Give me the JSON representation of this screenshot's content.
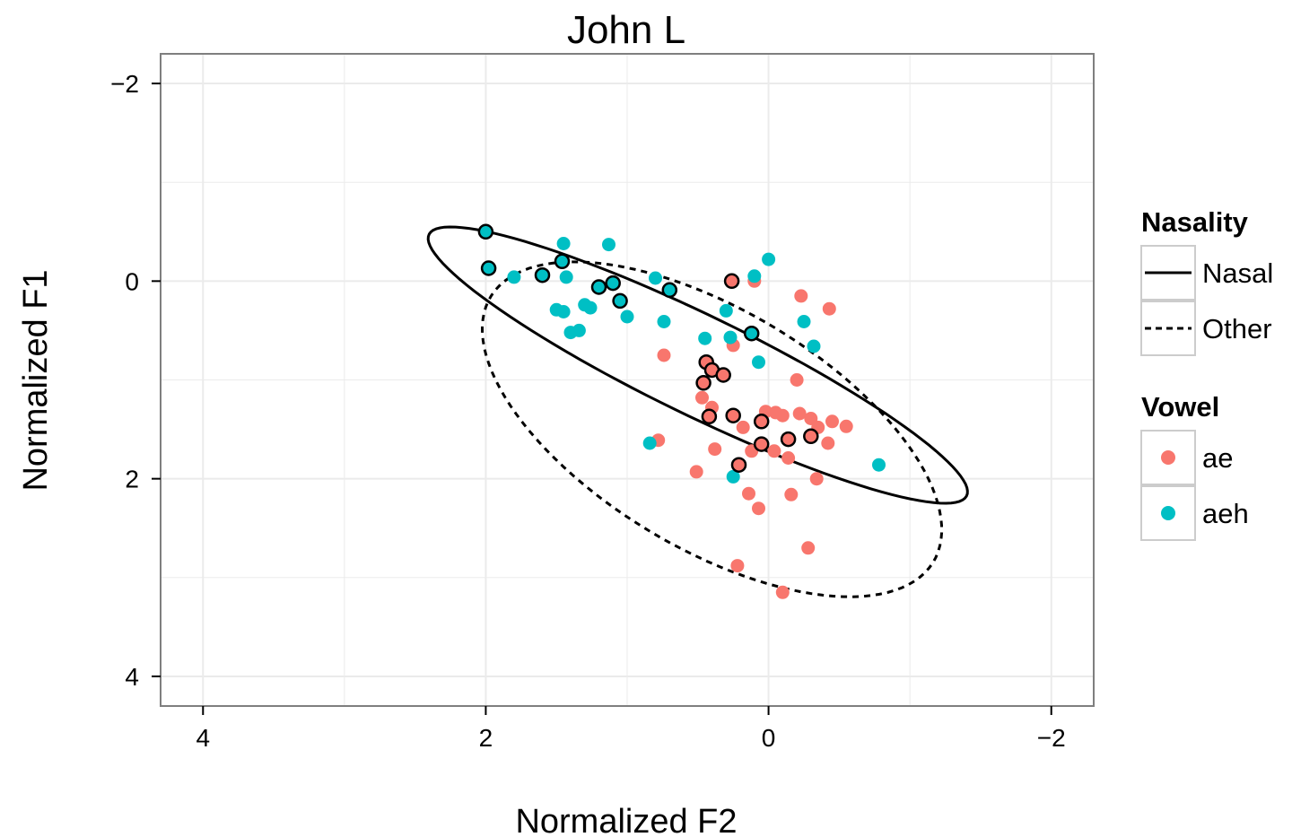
{
  "chart_data": {
    "type": "scatter",
    "title": "John L",
    "xlabel": "Normalized F2",
    "ylabel": "Normalized F1",
    "xlim": [
      4.3,
      -2.3
    ],
    "ylim": [
      -2.3,
      4.3
    ],
    "x_reversed": true,
    "y_reversed": true,
    "x_ticks": [
      4,
      2,
      0,
      -2
    ],
    "x_tick_labels": [
      "4",
      "2",
      "0",
      "−2"
    ],
    "y_ticks": [
      -2,
      0,
      2,
      4
    ],
    "y_tick_labels": [
      "−2",
      "0",
      "2",
      "4"
    ],
    "grid": true,
    "legend_placement": "right",
    "colors": {
      "ae": "#F8766D",
      "aeh": "#00BFC4",
      "panel_bg": "#ffffff",
      "grid": "#ebebeb",
      "border": "#7f7f7f"
    },
    "legends": [
      {
        "title": "Nasality",
        "entries": [
          {
            "label": "Nasal",
            "linetype": "solid"
          },
          {
            "label": "Other",
            "linetype": "dashed"
          }
        ]
      },
      {
        "title": "Vowel",
        "entries": [
          {
            "label": "ae",
            "color": "#F8766D"
          },
          {
            "label": "aeh",
            "color": "#00BFC4"
          }
        ]
      }
    ],
    "ellipses": [
      {
        "group": "Nasal",
        "linetype": "solid",
        "center": [
          0.5,
          0.85
        ],
        "semi_major": 2.32,
        "semi_minor": 0.46,
        "angle_deg": -35.5
      },
      {
        "group": "Other",
        "linetype": "dashed",
        "center": [
          0.4,
          1.5
        ],
        "semi_major": 2.1,
        "semi_minor": 1.05,
        "angle_deg": -47
      }
    ],
    "series": [
      {
        "name": "ae",
        "points": [
          {
            "x": 0.1,
            "y": 0.0,
            "outlined": false
          },
          {
            "x": -0.23,
            "y": 0.15,
            "outlined": false
          },
          {
            "x": -0.43,
            "y": 0.28,
            "outlined": false
          },
          {
            "x": 0.26,
            "y": 0.0,
            "outlined": true
          },
          {
            "x": 0.25,
            "y": 0.65,
            "outlined": false
          },
          {
            "x": 0.74,
            "y": 0.75,
            "outlined": false
          },
          {
            "x": 0.44,
            "y": 0.82,
            "outlined": true
          },
          {
            "x": 0.4,
            "y": 0.9,
            "outlined": true
          },
          {
            "x": 0.32,
            "y": 0.95,
            "outlined": true
          },
          {
            "x": 0.46,
            "y": 1.03,
            "outlined": true
          },
          {
            "x": -0.2,
            "y": 1.0,
            "outlined": false
          },
          {
            "x": 0.47,
            "y": 1.18,
            "outlined": false
          },
          {
            "x": 0.4,
            "y": 1.28,
            "outlined": false
          },
          {
            "x": 0.42,
            "y": 1.37,
            "outlined": true
          },
          {
            "x": 0.25,
            "y": 1.36,
            "outlined": true
          },
          {
            "x": 0.02,
            "y": 1.32,
            "outlined": false
          },
          {
            "x": -0.05,
            "y": 1.33,
            "outlined": false
          },
          {
            "x": -0.1,
            "y": 1.36,
            "outlined": false
          },
          {
            "x": -0.22,
            "y": 1.34,
            "outlined": false
          },
          {
            "x": -0.3,
            "y": 1.39,
            "outlined": false
          },
          {
            "x": 0.05,
            "y": 1.42,
            "outlined": true
          },
          {
            "x": 0.18,
            "y": 1.48,
            "outlined": false
          },
          {
            "x": -0.45,
            "y": 1.42,
            "outlined": false
          },
          {
            "x": -0.55,
            "y": 1.47,
            "outlined": false
          },
          {
            "x": -0.35,
            "y": 1.48,
            "outlined": false
          },
          {
            "x": -0.14,
            "y": 1.6,
            "outlined": true
          },
          {
            "x": -0.3,
            "y": 1.57,
            "outlined": true
          },
          {
            "x": 0.78,
            "y": 1.61,
            "outlined": false
          },
          {
            "x": -0.42,
            "y": 1.64,
            "outlined": false
          },
          {
            "x": 0.05,
            "y": 1.65,
            "outlined": true
          },
          {
            "x": 0.38,
            "y": 1.7,
            "outlined": false
          },
          {
            "x": -0.04,
            "y": 1.72,
            "outlined": false
          },
          {
            "x": 0.12,
            "y": 1.72,
            "outlined": false
          },
          {
            "x": -0.14,
            "y": 1.79,
            "outlined": false
          },
          {
            "x": 0.21,
            "y": 1.86,
            "outlined": true
          },
          {
            "x": 0.51,
            "y": 1.93,
            "outlined": false
          },
          {
            "x": -0.34,
            "y": 2.0,
            "outlined": false
          },
          {
            "x": 0.14,
            "y": 2.15,
            "outlined": false
          },
          {
            "x": -0.16,
            "y": 2.16,
            "outlined": false
          },
          {
            "x": 0.07,
            "y": 2.3,
            "outlined": false
          },
          {
            "x": -0.28,
            "y": 2.7,
            "outlined": false
          },
          {
            "x": 0.22,
            "y": 2.88,
            "outlined": false
          },
          {
            "x": -0.1,
            "y": 3.15,
            "outlined": false
          }
        ]
      },
      {
        "name": "aeh",
        "points": [
          {
            "x": 2.0,
            "y": -0.5,
            "outlined": true
          },
          {
            "x": 1.98,
            "y": -0.13,
            "outlined": true
          },
          {
            "x": 1.8,
            "y": -0.04,
            "outlined": false
          },
          {
            "x": 1.45,
            "y": -0.38,
            "outlined": false
          },
          {
            "x": 1.46,
            "y": -0.2,
            "outlined": true
          },
          {
            "x": 1.13,
            "y": -0.37,
            "outlined": false
          },
          {
            "x": 1.6,
            "y": -0.06,
            "outlined": true
          },
          {
            "x": 1.43,
            "y": -0.04,
            "outlined": false
          },
          {
            "x": 1.5,
            "y": 0.29,
            "outlined": false
          },
          {
            "x": 1.45,
            "y": 0.31,
            "outlined": false
          },
          {
            "x": 1.3,
            "y": 0.24,
            "outlined": false
          },
          {
            "x": 1.26,
            "y": 0.27,
            "outlined": false
          },
          {
            "x": 1.4,
            "y": 0.52,
            "outlined": false
          },
          {
            "x": 1.34,
            "y": 0.5,
            "outlined": false
          },
          {
            "x": 1.2,
            "y": 0.06,
            "outlined": true
          },
          {
            "x": 1.1,
            "y": 0.02,
            "outlined": true
          },
          {
            "x": 1.05,
            "y": 0.2,
            "outlined": true
          },
          {
            "x": 1.0,
            "y": 0.36,
            "outlined": false
          },
          {
            "x": 0.8,
            "y": -0.03,
            "outlined": false
          },
          {
            "x": 0.7,
            "y": 0.09,
            "outlined": true
          },
          {
            "x": 0.74,
            "y": 0.41,
            "outlined": false
          },
          {
            "x": 0.45,
            "y": 0.58,
            "outlined": false
          },
          {
            "x": 0.3,
            "y": 0.3,
            "outlined": false
          },
          {
            "x": 0.27,
            "y": 0.57,
            "outlined": false
          },
          {
            "x": 0.12,
            "y": 0.53,
            "outlined": true
          },
          {
            "x": 0.1,
            "y": -0.05,
            "outlined": false
          },
          {
            "x": 0.0,
            "y": -0.22,
            "outlined": false
          },
          {
            "x": 0.07,
            "y": 0.82,
            "outlined": false
          },
          {
            "x": -0.25,
            "y": 0.41,
            "outlined": false
          },
          {
            "x": -0.32,
            "y": 0.66,
            "outlined": false
          },
          {
            "x": 0.84,
            "y": 1.64,
            "outlined": false
          },
          {
            "x": 0.25,
            "y": 1.98,
            "outlined": false
          },
          {
            "x": -0.78,
            "y": 1.86,
            "outlined": false
          }
        ]
      }
    ]
  }
}
